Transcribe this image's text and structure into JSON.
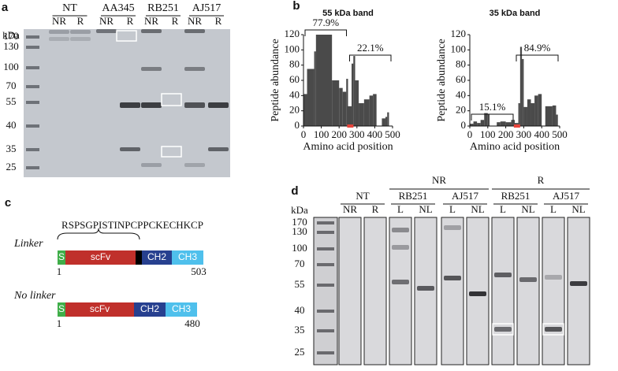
{
  "panel_a": {
    "label": "a",
    "unit": "kDa",
    "groups": [
      "NT",
      "AA345",
      "RB251",
      "AJ517"
    ],
    "lanes": [
      "NR",
      "R",
      "NR",
      "R",
      "NR",
      "R",
      "NR",
      "R"
    ],
    "markers": [
      170,
      130,
      100,
      70,
      55,
      40,
      35,
      25
    ]
  },
  "panel_b": {
    "label": "b"
  },
  "chart_data": [
    {
      "type": "histogram",
      "title": "55 kDa band",
      "xlabel": "Amino acid position",
      "ylabel": "Peptide abundance",
      "bins": [
        0,
        20,
        60,
        70,
        160,
        200,
        220,
        240,
        250,
        270,
        280,
        290,
        310,
        340,
        370,
        390,
        410,
        440,
        460,
        470,
        480
      ],
      "values": [
        42,
        75,
        98,
        120,
        60,
        50,
        45,
        62,
        26,
        82,
        92,
        60,
        30,
        35,
        40,
        42,
        0,
        10,
        12,
        18
      ],
      "color": "#4a4a4a",
      "xlim": [
        0,
        500
      ],
      "ylim": [
        0,
        120
      ],
      "xticks": [
        0,
        100,
        200,
        300,
        400,
        500
      ],
      "yticks": [
        0,
        20,
        40,
        60,
        80,
        100,
        120
      ],
      "annotations": [
        "77.9%",
        "22.1%"
      ]
    },
    {
      "type": "histogram",
      "title": "35 kDa band",
      "xlabel": "Amino acid position",
      "ylabel": "Peptide abundance",
      "bins": [
        0,
        20,
        40,
        60,
        80,
        100,
        110,
        150,
        170,
        200,
        230,
        250,
        270,
        280,
        290,
        300,
        320,
        340,
        360,
        380,
        400,
        420,
        460,
        480,
        490
      ],
      "values": [
        3,
        6,
        4,
        8,
        17,
        15,
        0,
        5,
        6,
        5,
        8,
        4,
        30,
        104,
        88,
        25,
        35,
        30,
        40,
        42,
        0,
        26,
        27,
        15
      ],
      "color": "#4a4a4a",
      "xlim": [
        0,
        500
      ],
      "ylim": [
        0,
        120
      ],
      "xticks": [
        0,
        100,
        200,
        300,
        400,
        500
      ],
      "yticks": [
        0,
        20,
        40,
        60,
        80,
        100,
        120
      ],
      "annotations": [
        "15.1%",
        "84.9%"
      ]
    }
  ],
  "panel_c": {
    "label": "c",
    "linker_sequence": "RSPSGPISTINPCPPCKECHKCP",
    "constructs": [
      {
        "name": "Linker",
        "domains": [
          "S",
          "scFv",
          "CH2",
          "CH3"
        ],
        "start": "1",
        "end": "503"
      },
      {
        "name": "No linker",
        "domains": [
          "S",
          "scFv",
          "CH2",
          "CH3"
        ],
        "start": "1",
        "end": "480"
      }
    ]
  },
  "panel_d": {
    "label": "d",
    "unit": "kDa",
    "conditions": [
      "NR",
      "R"
    ],
    "groups": [
      "NT",
      "RB251",
      "AJ517",
      "RB251",
      "AJ517"
    ],
    "lanes": [
      "NR",
      "R",
      "L",
      "NL",
      "L",
      "NL",
      "L",
      "NL",
      "L",
      "NL"
    ],
    "markers": [
      170,
      130,
      100,
      70,
      55,
      40,
      35,
      25
    ]
  }
}
